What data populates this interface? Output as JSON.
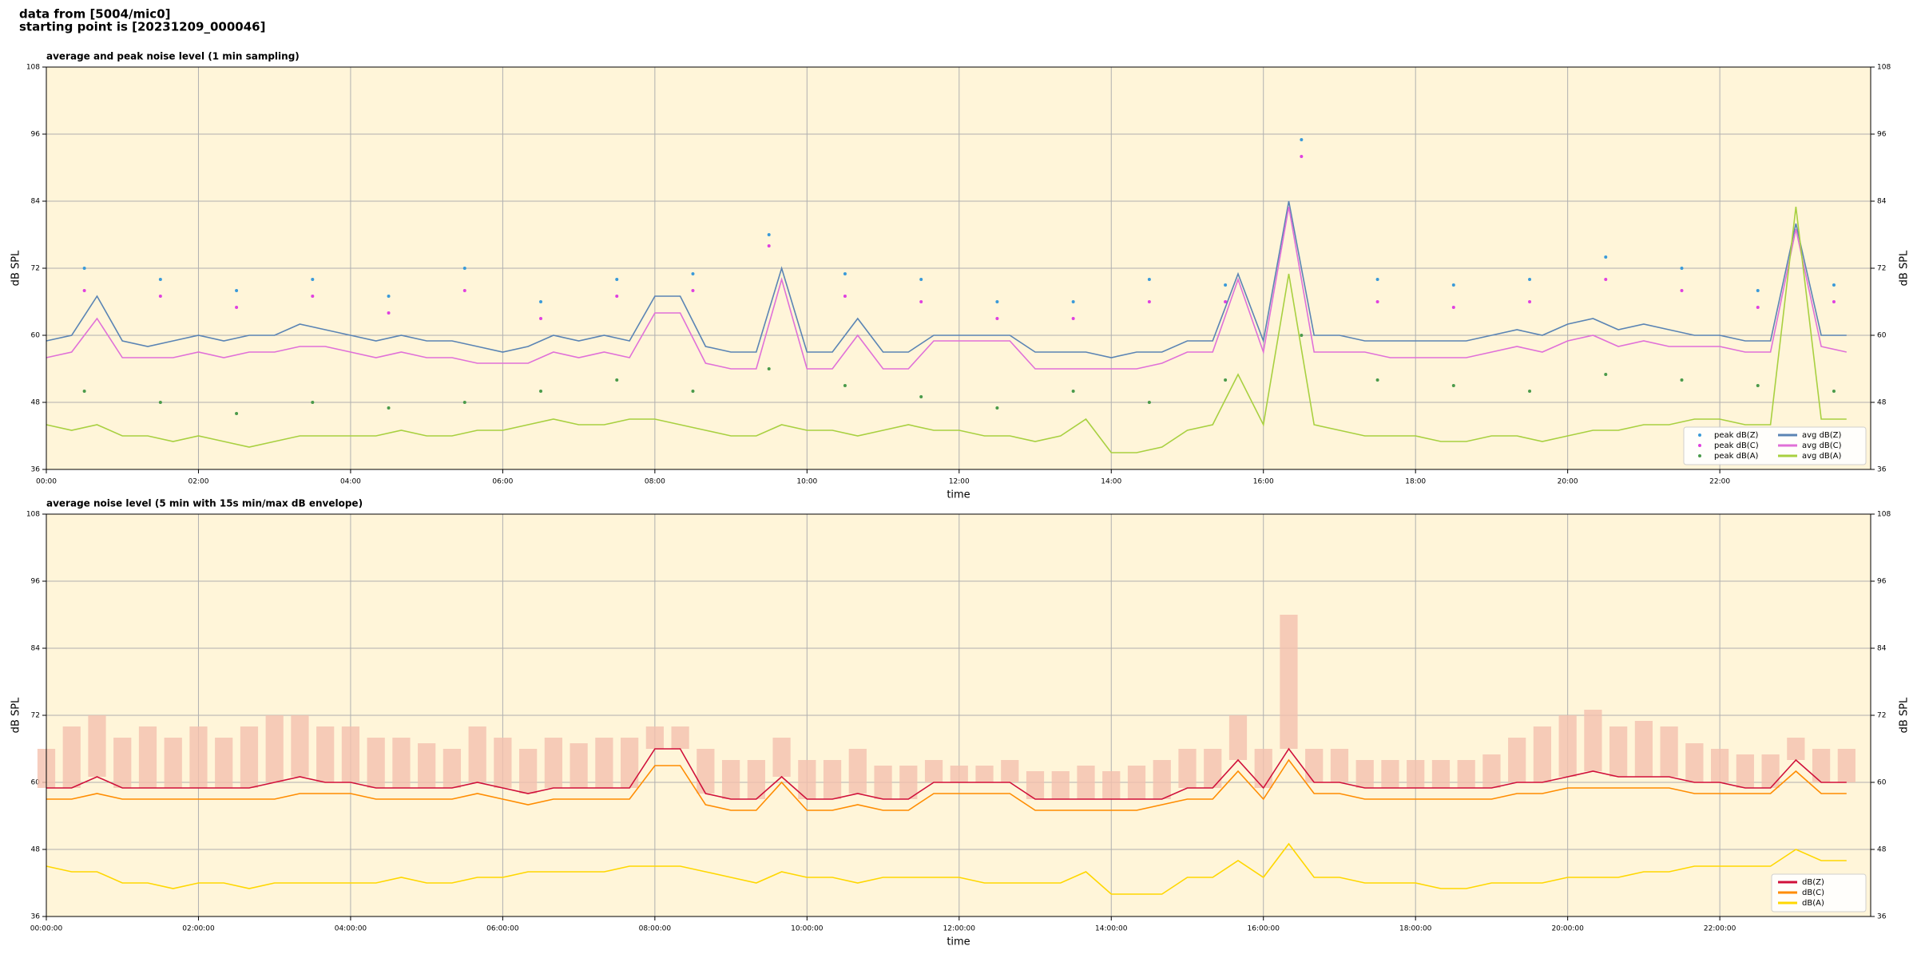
{
  "header": {
    "line1": "data from [5004/mic0]",
    "line2": "starting point is [20231209_000046]"
  },
  "chart_data": [
    {
      "type": "line",
      "title": "average and peak noise level (1 min sampling)",
      "x_label": "time",
      "y_label": "dB SPL",
      "xlim": [
        0,
        1439
      ],
      "ylim": [
        36,
        108
      ],
      "yticks": [
        36,
        48,
        60,
        72,
        84,
        96,
        108
      ],
      "grid": true,
      "legend": "lower right",
      "legend_ncol": 2,
      "xticks": [
        {
          "value": 0,
          "label": "00:00"
        },
        {
          "value": 120,
          "label": "02:00"
        },
        {
          "value": 240,
          "label": "04:00"
        },
        {
          "value": 360,
          "label": "06:00"
        },
        {
          "value": 480,
          "label": "08:00"
        },
        {
          "value": 600,
          "label": "10:00"
        },
        {
          "value": 720,
          "label": "12:00"
        },
        {
          "value": 840,
          "label": "14:00"
        },
        {
          "value": 960,
          "label": "16:00"
        },
        {
          "value": 1080,
          "label": "18:00"
        },
        {
          "value": 1200,
          "label": "20:00"
        },
        {
          "value": 1320,
          "label": "22:00"
        }
      ],
      "x": [
        0,
        20,
        40,
        60,
        80,
        100,
        120,
        140,
        160,
        180,
        200,
        220,
        240,
        260,
        280,
        300,
        320,
        340,
        360,
        380,
        400,
        420,
        440,
        460,
        480,
        500,
        520,
        540,
        560,
        580,
        600,
        620,
        640,
        660,
        680,
        700,
        720,
        740,
        760,
        780,
        800,
        820,
        840,
        860,
        880,
        900,
        920,
        940,
        960,
        980,
        1000,
        1020,
        1040,
        1060,
        1080,
        1100,
        1120,
        1140,
        1160,
        1180,
        1200,
        1220,
        1240,
        1260,
        1280,
        1300,
        1320,
        1340,
        1360,
        1380,
        1400,
        1420
      ],
      "series": [
        {
          "name": "peak dB(Z)",
          "mode": "markers",
          "color": "#3a9ad9",
          "x": [
            30,
            90,
            150,
            210,
            270,
            330,
            390,
            450,
            510,
            570,
            630,
            690,
            750,
            810,
            870,
            930,
            990,
            1050,
            1110,
            1170,
            1230,
            1290,
            1350,
            1410
          ],
          "values": [
            72,
            70,
            68,
            70,
            67,
            72,
            66,
            70,
            71,
            78,
            71,
            70,
            66,
            66,
            70,
            69,
            95,
            70,
            69,
            70,
            74,
            72,
            68,
            69
          ]
        },
        {
          "name": "peak dB(C)",
          "mode": "markers",
          "color": "#e040e0",
          "x": [
            30,
            90,
            150,
            210,
            270,
            330,
            390,
            450,
            510,
            570,
            630,
            690,
            750,
            810,
            870,
            930,
            990,
            1050,
            1110,
            1170,
            1230,
            1290,
            1350,
            1410
          ],
          "values": [
            68,
            67,
            65,
            67,
            64,
            68,
            63,
            67,
            68,
            76,
            67,
            66,
            63,
            63,
            66,
            66,
            92,
            66,
            65,
            66,
            70,
            68,
            65,
            66
          ]
        },
        {
          "name": "peak dB(A)",
          "mode": "markers",
          "color": "#4a9a4a",
          "x": [
            30,
            90,
            150,
            210,
            270,
            330,
            390,
            450,
            510,
            570,
            630,
            690,
            750,
            810,
            870,
            930,
            990,
            1050,
            1110,
            1170,
            1230,
            1290,
            1350,
            1410
          ],
          "values": [
            50,
            48,
            46,
            48,
            47,
            48,
            50,
            52,
            50,
            54,
            51,
            49,
            47,
            50,
            48,
            52,
            60,
            52,
            51,
            50,
            53,
            52,
            51,
            50
          ]
        },
        {
          "name": "avg dB(Z)",
          "color": "#5a84b4",
          "values": [
            59,
            60,
            67,
            59,
            58,
            59,
            60,
            59,
            60,
            60,
            62,
            61,
            60,
            59,
            60,
            59,
            59,
            58,
            57,
            58,
            60,
            59,
            60,
            59,
            67,
            67,
            58,
            57,
            57,
            72,
            57,
            57,
            63,
            57,
            57,
            60,
            60,
            60,
            60,
            57,
            57,
            57,
            56,
            57,
            57,
            59,
            59,
            71,
            59,
            84,
            60,
            60,
            59,
            59,
            59,
            59,
            59,
            60,
            61,
            60,
            62,
            63,
            61,
            62,
            61,
            60,
            60,
            59,
            59,
            80,
            60,
            60
          ]
        },
        {
          "name": "avg dB(C)",
          "color": "#e070d8",
          "values": [
            56,
            57,
            63,
            56,
            56,
            56,
            57,
            56,
            57,
            57,
            58,
            58,
            57,
            56,
            57,
            56,
            56,
            55,
            55,
            55,
            57,
            56,
            57,
            56,
            64,
            64,
            55,
            54,
            54,
            70,
            54,
            54,
            60,
            54,
            54,
            59,
            59,
            59,
            59,
            54,
            54,
            54,
            54,
            54,
            55,
            57,
            57,
            70,
            57,
            83,
            57,
            57,
            57,
            56,
            56,
            56,
            56,
            57,
            58,
            57,
            59,
            60,
            58,
            59,
            58,
            58,
            58,
            57,
            57,
            79,
            58,
            57
          ]
        },
        {
          "name": "avg dB(A)",
          "color": "#a8d040",
          "values": [
            44,
            43,
            44,
            42,
            42,
            41,
            42,
            41,
            40,
            41,
            42,
            42,
            42,
            42,
            43,
            42,
            42,
            43,
            43,
            44,
            45,
            44,
            44,
            45,
            45,
            44,
            43,
            42,
            42,
            44,
            43,
            43,
            42,
            43,
            44,
            43,
            43,
            42,
            42,
            41,
            42,
            45,
            39,
            39,
            40,
            43,
            44,
            53,
            44,
            71,
            44,
            43,
            42,
            42,
            42,
            41,
            41,
            42,
            42,
            41,
            42,
            43,
            43,
            44,
            44,
            45,
            45,
            44,
            44,
            83,
            45,
            45
          ]
        }
      ]
    },
    {
      "type": "line",
      "title": "average noise level (5 min with 15s min/max dB envelope)",
      "x_label": "time",
      "y_label": "dB SPL",
      "xlim": [
        0,
        1439
      ],
      "ylim": [
        36,
        108
      ],
      "yticks": [
        36,
        48,
        60,
        72,
        84,
        96,
        108
      ],
      "grid": true,
      "legend": "lower right",
      "legend_ncol": 1,
      "xticks": [
        {
          "value": 0,
          "label": "00:00:00"
        },
        {
          "value": 120,
          "label": "02:00:00"
        },
        {
          "value": 240,
          "label": "04:00:00"
        },
        {
          "value": 360,
          "label": "06:00:00"
        },
        {
          "value": 480,
          "label": "08:00:00"
        },
        {
          "value": 600,
          "label": "10:00:00"
        },
        {
          "value": 720,
          "label": "12:00:00"
        },
        {
          "value": 840,
          "label": "14:00:00"
        },
        {
          "value": 960,
          "label": "16:00:00"
        },
        {
          "value": 1080,
          "label": "18:00:00"
        },
        {
          "value": 1200,
          "label": "20:00:00"
        },
        {
          "value": 1320,
          "label": "22:00:00"
        }
      ],
      "x": [
        0,
        20,
        40,
        60,
        80,
        100,
        120,
        140,
        160,
        180,
        200,
        220,
        240,
        260,
        280,
        300,
        320,
        340,
        360,
        380,
        400,
        420,
        440,
        460,
        480,
        500,
        520,
        540,
        560,
        580,
        600,
        620,
        640,
        660,
        680,
        700,
        720,
        740,
        760,
        780,
        800,
        820,
        840,
        860,
        880,
        900,
        920,
        940,
        960,
        980,
        1000,
        1020,
        1040,
        1060,
        1080,
        1100,
        1120,
        1140,
        1160,
        1180,
        1200,
        1220,
        1240,
        1260,
        1280,
        1300,
        1320,
        1340,
        1360,
        1380,
        1400,
        1420
      ],
      "envelope": {
        "color": "#f4c0ae",
        "values": [
          66,
          70,
          72,
          68,
          70,
          68,
          70,
          68,
          70,
          72,
          72,
          70,
          70,
          68,
          68,
          67,
          66,
          70,
          68,
          66,
          68,
          67,
          68,
          68,
          70,
          70,
          66,
          64,
          64,
          68,
          64,
          64,
          66,
          63,
          63,
          64,
          63,
          63,
          64,
          62,
          62,
          63,
          62,
          63,
          64,
          66,
          66,
          72,
          66,
          90,
          66,
          66,
          64,
          64,
          64,
          64,
          64,
          65,
          68,
          70,
          72,
          73,
          70,
          71,
          70,
          67,
          66,
          65,
          65,
          68,
          66,
          66
        ]
      },
      "series": [
        {
          "name": "dB(Z)",
          "color": "#d0103a",
          "values": [
            59,
            59,
            61,
            59,
            59,
            59,
            59,
            59,
            59,
            60,
            61,
            60,
            60,
            59,
            59,
            59,
            59,
            60,
            59,
            58,
            59,
            59,
            59,
            59,
            66,
            66,
            58,
            57,
            57,
            61,
            57,
            57,
            58,
            57,
            57,
            60,
            60,
            60,
            60,
            57,
            57,
            57,
            57,
            57,
            57,
            59,
            59,
            64,
            59,
            66,
            60,
            60,
            59,
            59,
            59,
            59,
            59,
            59,
            60,
            60,
            61,
            62,
            61,
            61,
            61,
            60,
            60,
            59,
            59,
            64,
            60,
            60
          ]
        },
        {
          "name": "dB(C)",
          "color": "#ff8c00",
          "values": [
            57,
            57,
            58,
            57,
            57,
            57,
            57,
            57,
            57,
            57,
            58,
            58,
            58,
            57,
            57,
            57,
            57,
            58,
            57,
            56,
            57,
            57,
            57,
            57,
            63,
            63,
            56,
            55,
            55,
            60,
            55,
            55,
            56,
            55,
            55,
            58,
            58,
            58,
            58,
            55,
            55,
            55,
            55,
            55,
            56,
            57,
            57,
            62,
            57,
            64,
            58,
            58,
            57,
            57,
            57,
            57,
            57,
            57,
            58,
            58,
            59,
            59,
            59,
            59,
            59,
            58,
            58,
            58,
            58,
            62,
            58,
            58
          ]
        },
        {
          "name": "dB(A)",
          "color": "#ffd700",
          "values": [
            45,
            44,
            44,
            42,
            42,
            41,
            42,
            42,
            41,
            42,
            42,
            42,
            42,
            42,
            43,
            42,
            42,
            43,
            43,
            44,
            44,
            44,
            44,
            45,
            45,
            45,
            44,
            43,
            42,
            44,
            43,
            43,
            42,
            43,
            43,
            43,
            43,
            42,
            42,
            42,
            42,
            44,
            40,
            40,
            40,
            43,
            43,
            46,
            43,
            49,
            43,
            43,
            42,
            42,
            42,
            41,
            41,
            42,
            42,
            42,
            43,
            43,
            43,
            44,
            44,
            45,
            45,
            45,
            45,
            48,
            46,
            46
          ]
        }
      ]
    }
  ]
}
